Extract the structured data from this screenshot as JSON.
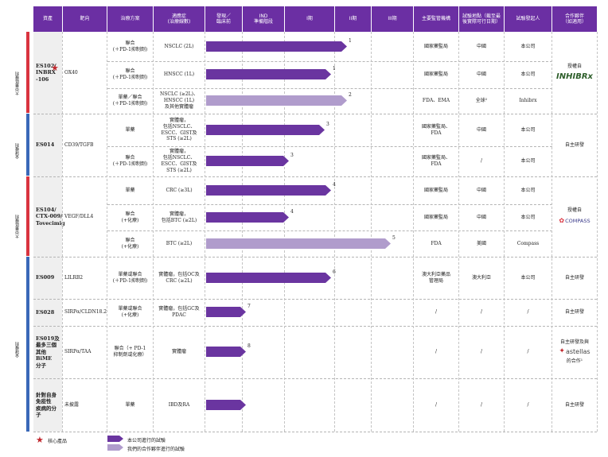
{
  "headers": {
    "asset": "資產",
    "target": "靶向",
    "regimen": "治療方案",
    "indication": "適應症\n(治療線數)",
    "discovery": "發現／\n臨床前",
    "ind": "IND\n準備階段",
    "phase1": "I期",
    "phase2": "II期",
    "phase3": "III期",
    "regulator": "主要監管機構",
    "regions": "試驗地點（截至最\n後實際可行日期）",
    "sponsor": "試驗發起人",
    "partner": "合作夥伴\n（如適用）"
  },
  "side_labels": [
    "大中華區權利",
    "全球權利",
    "大中華區權利",
    "全球權利"
  ],
  "assets": [
    {
      "name": "ES102/\nINBRX\n-106",
      "target": "OX40",
      "partner": "授權自",
      "partner_logo": "INHIBRx"
    },
    {
      "name": "ES014",
      "target": "CD39/TGFB",
      "partner": "自主研發"
    },
    {
      "name": "ES104/\nCTX-009/\nTovecimig",
      "target": "VEGF/DLL4",
      "partner": "授權自",
      "partner_logo": "COMPASS"
    },
    {
      "name": "ES009",
      "target": "LILRB2",
      "partner": "自主研發"
    },
    {
      "name": "ES028",
      "target": "SIRPα/CLDN18.2",
      "partner": "自主研發"
    },
    {
      "name": "ES019及\n最多三個\n其他BiME\n分子",
      "target": "SIRPα/TAA",
      "partner": "自主研發及與",
      "partner_logo": "astellas",
      "partner_suffix": "的合作¹"
    },
    {
      "name": "針對自身\n免疫性\n疾病的分子",
      "target": "未披露",
      "partner": "自主研發"
    }
  ],
  "rows": [
    {
      "regimen": "聯合\n(＋PD-1抑制劑)",
      "indication": "NSCLC (2L)",
      "regulator": "國家藥監局",
      "region": "中國",
      "sponsor": "本公司",
      "num": "1"
    },
    {
      "regimen": "聯合\n(＋PD-1抑制劑)",
      "indication": "HNSCC (1L)",
      "regulator": "國家藥監局",
      "region": "中國",
      "sponsor": "本公司",
      "num": "1"
    },
    {
      "regimen": "單藥／聯合\n(＋PD-1抑制劑)",
      "indication": "NSCLC (≥2L)、\nHNSCC (1L)\n及其他實體瘤",
      "regulator": "FDA、EMA",
      "region": "全球²",
      "sponsor": "Inhibrx",
      "num": "2"
    },
    {
      "regimen": "單藥",
      "indication": "實體瘤，\n包括NSCLC、\nESCC、GIST及\nSTS (≥2L)",
      "regulator": "國家藥監局、\nFDA",
      "region": "中國",
      "sponsor": "本公司",
      "num": "3"
    },
    {
      "regimen": "聯合\n(＋PD-1抑制劑)",
      "indication": "實體瘤，\n包括NSCLC、\nESCC、GIST及\nSTS (≥2L)",
      "regulator": "國家藥監局、\nFDA",
      "region": "/",
      "sponsor": "本公司",
      "num": "3"
    },
    {
      "regimen": "單藥",
      "indication": "CRC (≥3L)",
      "regulator": "國家藥監局",
      "region": "中國",
      "sponsor": "本公司",
      "num": "4"
    },
    {
      "regimen": "聯合\n(+化療)",
      "indication": "實體瘤，\n包括BTC (≥2L)",
      "regulator": "國家藥監局",
      "region": "中國",
      "sponsor": "本公司",
      "num": "4"
    },
    {
      "regimen": "聯合\n(+化療)",
      "indication": "BTC (≥2L)",
      "regulator": "FDA",
      "region": "美國",
      "sponsor": "Compass",
      "num": "5"
    },
    {
      "regimen": "單藥或聯合\n(＋PD-1抑制劑)",
      "indication": "實體瘤，包括OC及\nCRC (≥2L)",
      "regulator": "澳大利亞藥品\n管理局",
      "region": "澳大利亞",
      "sponsor": "本公司",
      "num": "6"
    },
    {
      "regimen": "單藥或聯合\n(+化療)",
      "indication": "實體瘤，包括GC及\nPDAC",
      "regulator": "/",
      "region": "/",
      "sponsor": "/",
      "num": "7"
    },
    {
      "regimen": "聯合（+ PD-1\n抑制劑或化療）",
      "indication": "實體瘤",
      "regulator": "/",
      "region": "/",
      "sponsor": "/",
      "num": "8"
    },
    {
      "regimen": "單藥",
      "indication": "IBD及RA",
      "regulator": "/",
      "region": "/",
      "sponsor": "/",
      "num": ""
    }
  ],
  "legend": {
    "core": "核心產品",
    "own": "本公司進行的試驗",
    "partner": "我們的合作夥伴進行的試驗"
  },
  "colors": {
    "header": "#6b2fa3",
    "own_bar": "#6a35a0",
    "partner_bar": "#b09ccc",
    "core_star": "#c1272d",
    "side_red": "#d9343f",
    "side_blue": "#3a68b8"
  }
}
